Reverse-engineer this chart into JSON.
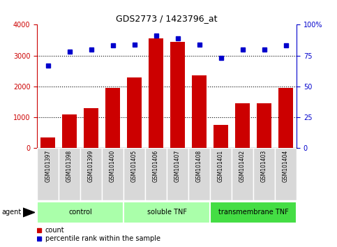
{
  "title": "GDS2773 / 1423796_at",
  "samples": [
    "GSM101397",
    "GSM101398",
    "GSM101399",
    "GSM101400",
    "GSM101405",
    "GSM101406",
    "GSM101407",
    "GSM101408",
    "GSM101401",
    "GSM101402",
    "GSM101403",
    "GSM101404"
  ],
  "counts": [
    350,
    1100,
    1300,
    1950,
    2300,
    3550,
    3450,
    2350,
    750,
    1450,
    1450,
    1950
  ],
  "percentiles": [
    67,
    78,
    80,
    83,
    84,
    91,
    89,
    84,
    73,
    80,
    80,
    83
  ],
  "groups": [
    {
      "label": "control",
      "start": 0,
      "end": 4,
      "color": "#aaffaa"
    },
    {
      "label": "soluble TNF",
      "start": 4,
      "end": 8,
      "color": "#aaffaa"
    },
    {
      "label": "transmembrane TNF",
      "start": 8,
      "end": 12,
      "color": "#44dd44"
    }
  ],
  "bar_color": "#cc0000",
  "dot_color": "#0000cc",
  "left_ylim": [
    0,
    4000
  ],
  "right_ylim": [
    0,
    100
  ],
  "left_yticks": [
    0,
    1000,
    2000,
    3000,
    4000
  ],
  "right_yticks": [
    0,
    25,
    50,
    75,
    100
  ],
  "right_yticklabels": [
    "0",
    "25",
    "50",
    "75",
    "100%"
  ],
  "grid_values": [
    1000,
    2000,
    3000
  ],
  "legend_count_label": "count",
  "legend_percentile_label": "percentile rank within the sample",
  "agent_label": "agent",
  "bg_color": "#ffffff",
  "plot_bg": "#ffffff"
}
